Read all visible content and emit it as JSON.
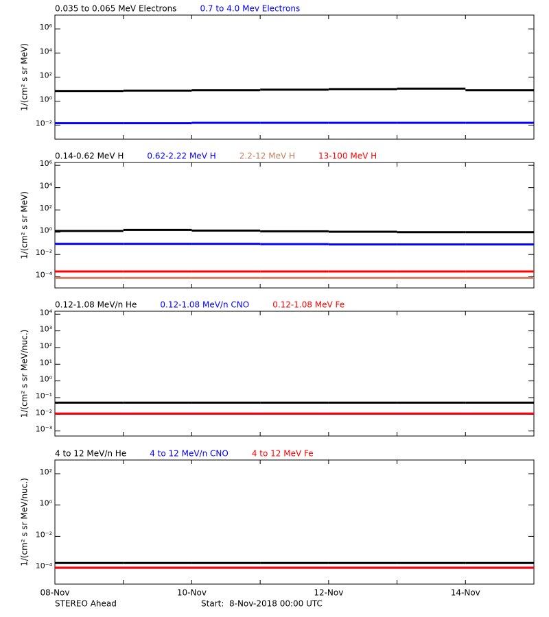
{
  "chart_data": [
    {
      "type": "scatter",
      "log_y": true,
      "ylabel": "1/(cm² s sr MeV)",
      "x": [
        "08-Nov",
        "09-Nov",
        "10-Nov",
        "11-Nov",
        "12-Nov",
        "13-Nov",
        "14-Nov"
      ],
      "ylim": [
        0.0007,
        14000000
      ],
      "yticks": [
        {
          "value": 0.01,
          "label": "10⁻²"
        },
        {
          "value": 1,
          "label": "10⁰"
        },
        {
          "value": 100,
          "label": "10²"
        },
        {
          "value": 10000,
          "label": "10⁴"
        },
        {
          "value": 1000000,
          "label": "10⁶"
        }
      ],
      "series": [
        {
          "name": "0.035 to 0.065 MeV Electrons",
          "color": "#000000",
          "values": [
            7,
            7.5,
            8,
            9,
            10,
            11,
            8
          ]
        },
        {
          "name": "0.7 to 4.0 Mev Electrons",
          "color": "#0000ff",
          "values": [
            0.015,
            0.015,
            0.016,
            0.016,
            0.016,
            0.016,
            0.016
          ]
        }
      ]
    },
    {
      "type": "scatter",
      "log_y": true,
      "ylabel": "1/(cm² s sr MeV)",
      "x": [
        "08-Nov",
        "09-Nov",
        "10-Nov",
        "11-Nov",
        "12-Nov",
        "13-Nov",
        "14-Nov"
      ],
      "ylim": [
        1e-05,
        1800000
      ],
      "yticks": [
        {
          "value": 0.0001,
          "label": "10⁻⁴"
        },
        {
          "value": 0.01,
          "label": "10⁻²"
        },
        {
          "value": 1,
          "label": "10⁰"
        },
        {
          "value": 100,
          "label": "10²"
        },
        {
          "value": 10000,
          "label": "10⁴"
        },
        {
          "value": 1000000,
          "label": "10⁶"
        }
      ],
      "series": [
        {
          "name": "0.14-0.62 MeV H",
          "color": "#000000",
          "values": [
            1.3,
            1.6,
            1.4,
            1.2,
            1.1,
            1.0,
            1.0
          ]
        },
        {
          "name": "0.62-2.22 MeV H",
          "color": "#0000ff",
          "values": [
            0.09,
            0.09,
            0.09,
            0.085,
            0.08,
            0.08,
            0.08
          ]
        },
        {
          "name": "2.2-12 MeV H",
          "color": "#c8805f",
          "values": [
            8e-05,
            8e-05,
            8e-05,
            8e-05,
            8e-05,
            8e-05,
            8e-05
          ]
        },
        {
          "name": "13-100 MeV H",
          "color": "#ff0000",
          "values": [
            0.0003,
            0.0003,
            0.0003,
            0.0003,
            0.0003,
            0.0003,
            0.0003
          ]
        }
      ]
    },
    {
      "type": "scatter",
      "log_y": true,
      "ylabel": "1/(cm² s sr MeV/nuc.)",
      "x": [
        "08-Nov",
        "09-Nov",
        "10-Nov",
        "11-Nov",
        "12-Nov",
        "13-Nov",
        "14-Nov"
      ],
      "ylim": [
        0.0005,
        15000
      ],
      "yticks": [
        {
          "value": 0.001,
          "label": "10⁻³"
        },
        {
          "value": 0.01,
          "label": "10⁻²"
        },
        {
          "value": 0.1,
          "label": "10⁻¹"
        },
        {
          "value": 1,
          "label": "10⁰"
        },
        {
          "value": 10,
          "label": "10¹"
        },
        {
          "value": 100,
          "label": "10²"
        },
        {
          "value": 1000,
          "label": "10³"
        },
        {
          "value": 10000,
          "label": "10⁴"
        }
      ],
      "series": [
        {
          "name": "0.12-1.08 MeV/n He",
          "color": "#000000",
          "values": [
            0.05,
            0.05,
            0.05,
            0.05,
            0.05,
            0.05,
            0.05
          ]
        },
        {
          "name": "0.12-1.08 MeV/n CNO",
          "color": "#0000ff",
          "values": [
            0.011,
            0.011,
            0.011,
            0.011,
            0.011,
            0.011,
            0.011
          ]
        },
        {
          "name": "0.12-1.08 MeV Fe",
          "color": "#ff0000",
          "values": [
            0.011,
            0.011,
            0.011,
            0.011,
            0.011,
            0.011,
            0.011
          ]
        }
      ]
    },
    {
      "type": "scatter",
      "log_y": true,
      "ylabel": "1/(cm² s sr MeV/nuc.)",
      "x": [
        "08-Nov",
        "09-Nov",
        "10-Nov",
        "11-Nov",
        "12-Nov",
        "13-Nov",
        "14-Nov"
      ],
      "ylim": [
        9e-06,
        750
      ],
      "yticks": [
        {
          "value": 0.0001,
          "label": "10⁻⁴"
        },
        {
          "value": 0.01,
          "label": "10⁻²"
        },
        {
          "value": 1,
          "label": "10⁰"
        },
        {
          "value": 100,
          "label": "10²"
        }
      ],
      "series": [
        {
          "name": "4 to 12 MeV/n He",
          "color": "#000000",
          "values": [
            0.0002,
            0.0002,
            0.0002,
            0.0002,
            0.0002,
            0.0002,
            0.0002
          ]
        },
        {
          "name": "4 to 12 MeV/n CNO",
          "color": "#0000ff",
          "values": [
            0.0001,
            0.0001,
            0.0001,
            0.0001,
            0.0001,
            0.0001,
            0.0001
          ]
        },
        {
          "name": "4 to 12 MeV Fe",
          "color": "#ff0000",
          "values": [
            0.0001,
            0.0001,
            0.0001,
            0.0001,
            0.0001,
            0.0001,
            0.0001
          ]
        }
      ]
    }
  ],
  "x_axis_labels": [
    "08-Nov",
    "10-Nov",
    "12-Nov",
    "14-Nov"
  ],
  "footer": {
    "spacecraft": "STEREO Ahead",
    "start": "Start:  8-Nov-2018 00:00 UTC"
  }
}
